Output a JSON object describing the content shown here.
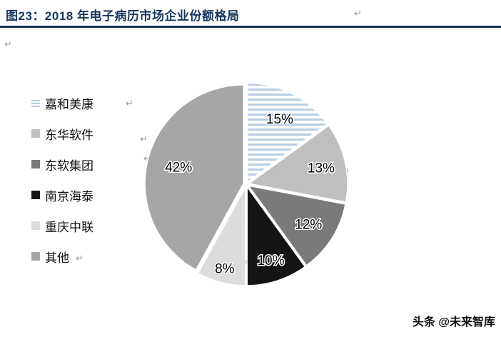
{
  "page": {
    "title": "图23：2018 年电子病历市场企业份额格局",
    "watermark": "头条 @未来智库",
    "paragraph_mark": "↵",
    "accent_color": "#17375E"
  },
  "chart_data": {
    "type": "pie",
    "title": "2018 年电子病历市场企业份额格局",
    "categories": [
      "嘉和美康",
      "东华软件",
      "东软集团",
      "南京海泰",
      "重庆中联",
      "其他"
    ],
    "values": [
      15,
      13,
      12,
      10,
      8,
      42
    ],
    "labels": [
      "15%",
      "13%",
      "12%",
      "10%",
      "8%",
      "42%"
    ],
    "colors": [
      "stripes",
      "#BFBFBF",
      "#7A7A7A",
      "#141414",
      "#DCDCDC",
      "#A6A6A6"
    ],
    "stripe_pattern": {
      "background": "#FFFFFF",
      "stripe": "#B8CCE4"
    },
    "legend_position": "left",
    "start_angle_deg": -90,
    "clockwise": true,
    "label_radius": [
      0.72,
      0.75,
      0.72,
      0.78,
      0.85,
      0.68
    ]
  }
}
